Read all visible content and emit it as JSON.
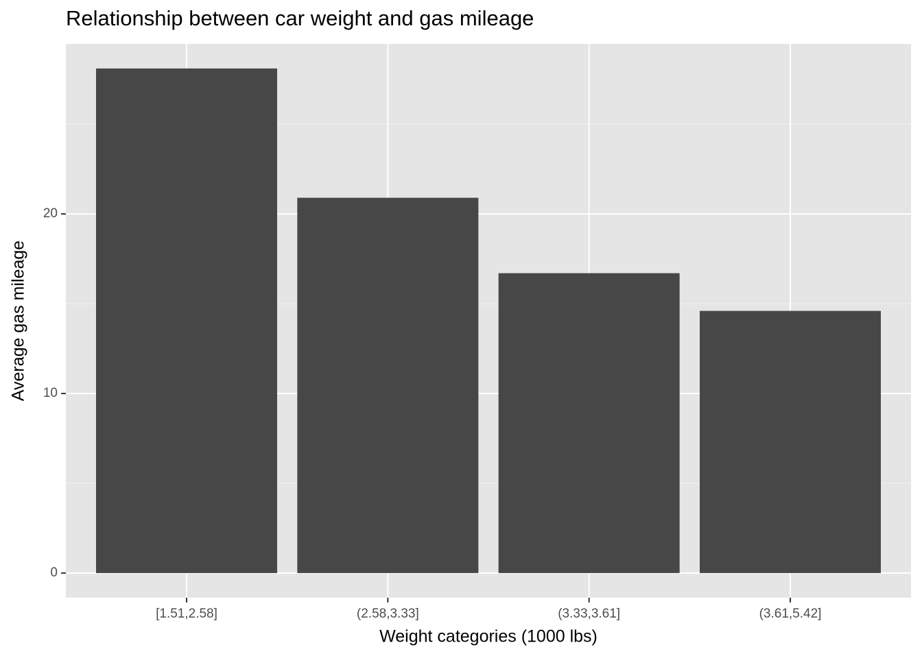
{
  "chart_data": {
    "type": "bar",
    "title": "Relationship between car weight and gas mileage",
    "x_label": "Weight categories (1000 lbs)",
    "y_label": "Average gas mileage",
    "categories": [
      "[1.51,2.58]",
      "(2.58,3.33]",
      "(3.33,3.61]",
      "(3.61,5.42]"
    ],
    "values": [
      28.1,
      20.9,
      16.7,
      14.6
    ],
    "color": "#474747",
    "ylim": [
      -1.37,
      29.47
    ],
    "yticks": [
      0,
      10,
      20
    ],
    "minor_yticks": [
      5,
      15,
      25
    ],
    "grid": true
  }
}
